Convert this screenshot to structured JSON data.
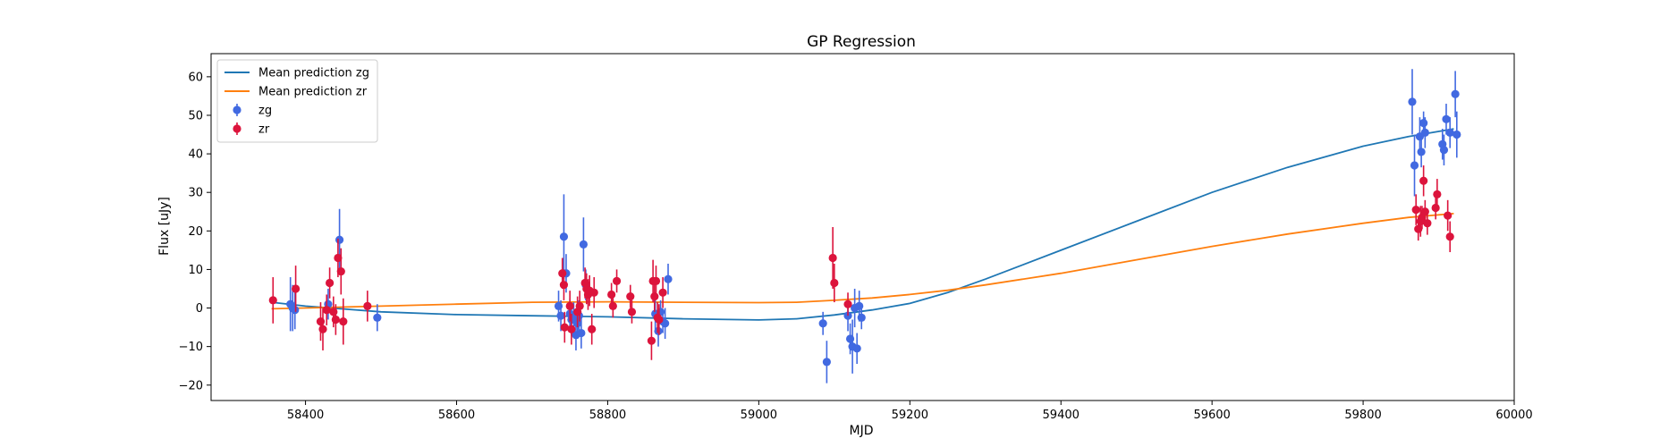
{
  "chart_data": {
    "type": "scatter",
    "title": "GP Regression",
    "xlabel": "MJD",
    "ylabel": "Flux [uJy]",
    "xlim": [
      58275,
      60000
    ],
    "ylim": [
      -24,
      66
    ],
    "xticks": [
      58400,
      58600,
      58800,
      59000,
      59200,
      59400,
      59600,
      59800,
      60000
    ],
    "yticks": [
      -20,
      -10,
      0,
      10,
      20,
      30,
      40,
      50,
      60
    ],
    "grid": false,
    "legend_position": "top-left",
    "colors": {
      "mean_zg": "#1f77b4",
      "mean_zr": "#ff7f0e",
      "zg": "#4169e1",
      "zr": "#dc143c"
    },
    "legend": [
      {
        "label": "Mean prediction zg",
        "kind": "line",
        "color": "#1f77b4"
      },
      {
        "label": "Mean prediction zr",
        "kind": "line",
        "color": "#ff7f0e"
      },
      {
        "label": "zg",
        "kind": "errorbar",
        "color": "#4169e1"
      },
      {
        "label": "zr",
        "kind": "errorbar",
        "color": "#dc143c"
      }
    ],
    "series": [
      {
        "name": "Mean prediction zg",
        "kind": "line",
        "color": "#1f77b4",
        "points": [
          [
            58355,
            1.5
          ],
          [
            58400,
            0.5
          ],
          [
            58500,
            -1
          ],
          [
            58600,
            -1.7
          ],
          [
            58700,
            -2
          ],
          [
            58800,
            -2.3
          ],
          [
            58900,
            -2.8
          ],
          [
            59000,
            -3.1
          ],
          [
            59050,
            -2.8
          ],
          [
            59100,
            -1.8
          ],
          [
            59150,
            -0.5
          ],
          [
            59200,
            1.2
          ],
          [
            59250,
            4
          ],
          [
            59300,
            7.5
          ],
          [
            59400,
            15
          ],
          [
            59500,
            22.5
          ],
          [
            59600,
            30
          ],
          [
            59700,
            36.5
          ],
          [
            59800,
            42
          ],
          [
            59860,
            44.5
          ],
          [
            59920,
            46.5
          ]
        ]
      },
      {
        "name": "Mean prediction zr",
        "kind": "line",
        "color": "#ff7f0e",
        "points": [
          [
            58355,
            -0.2
          ],
          [
            58400,
            0
          ],
          [
            58500,
            0.5
          ],
          [
            58600,
            1
          ],
          [
            58700,
            1.5
          ],
          [
            58800,
            1.6
          ],
          [
            58900,
            1.5
          ],
          [
            59000,
            1.4
          ],
          [
            59050,
            1.5
          ],
          [
            59100,
            2
          ],
          [
            59150,
            2.6
          ],
          [
            59200,
            3.5
          ],
          [
            59250,
            4.6
          ],
          [
            59300,
            6
          ],
          [
            59400,
            9
          ],
          [
            59500,
            12.5
          ],
          [
            59600,
            16
          ],
          [
            59700,
            19.2
          ],
          [
            59800,
            22
          ],
          [
            59860,
            23.5
          ],
          [
            59920,
            24.5
          ]
        ]
      },
      {
        "name": "zg",
        "kind": "errorbar",
        "color": "#4169e1",
        "points": [
          [
            58380,
            1,
            7
          ],
          [
            58383,
            0,
            6
          ],
          [
            58386,
            -0.5,
            5
          ],
          [
            58430,
            1,
            4
          ],
          [
            58445,
            17.7,
            8
          ],
          [
            58495,
            -2.5,
            3.5
          ],
          [
            58735,
            0.5,
            4
          ],
          [
            58738,
            -2,
            4
          ],
          [
            58742,
            18.5,
            11
          ],
          [
            58745,
            9,
            5
          ],
          [
            58750,
            -1.5,
            4
          ],
          [
            58752,
            -3,
            4
          ],
          [
            58755,
            -2.5,
            4
          ],
          [
            58758,
            -7,
            4
          ],
          [
            58760,
            -4,
            4
          ],
          [
            58762,
            -2,
            4
          ],
          [
            58765,
            -6.5,
            4
          ],
          [
            58768,
            16.5,
            7
          ],
          [
            58771,
            6,
            4
          ],
          [
            58863,
            -1.5,
            4
          ],
          [
            58867,
            -6,
            4
          ],
          [
            58870,
            -1,
            3
          ],
          [
            58873,
            -3.5,
            3
          ],
          [
            58876,
            -4,
            4
          ],
          [
            58880,
            7.5,
            4
          ],
          [
            59085,
            -4,
            3
          ],
          [
            59090,
            -14,
            5.5
          ],
          [
            59118,
            -2,
            4
          ],
          [
            59121,
            -8,
            4
          ],
          [
            59124,
            -10,
            7
          ],
          [
            59127,
            0,
            5
          ],
          [
            59130,
            -10.5,
            4
          ],
          [
            59133,
            0.5,
            4
          ],
          [
            59136,
            -2.5,
            3
          ],
          [
            59865,
            53.5,
            8.5
          ],
          [
            59868,
            37,
            8
          ],
          [
            59875,
            44.5,
            5
          ],
          [
            59877,
            40.5,
            4
          ],
          [
            59880,
            48,
            3
          ],
          [
            59882,
            45.5,
            4
          ],
          [
            59905,
            42.5,
            4
          ],
          [
            59907,
            41,
            4
          ],
          [
            59910,
            49,
            4
          ],
          [
            59915,
            45.5,
            4
          ],
          [
            59922,
            55.5,
            6
          ],
          [
            59924,
            45,
            6
          ]
        ]
      },
      {
        "name": "zr",
        "kind": "errorbar",
        "color": "#dc143c",
        "points": [
          [
            58357,
            2,
            6
          ],
          [
            58387,
            5,
            6
          ],
          [
            58420,
            -3.5,
            5
          ],
          [
            58423,
            -5.5,
            5.5
          ],
          [
            58428,
            -0.5,
            4
          ],
          [
            58432,
            6.5,
            4
          ],
          [
            58437,
            -1,
            4
          ],
          [
            58440,
            -3,
            4
          ],
          [
            58443,
            13,
            5
          ],
          [
            58447,
            9.5,
            6
          ],
          [
            58450,
            -3.5,
            6
          ],
          [
            58482,
            0.5,
            4
          ],
          [
            58740,
            9,
            4
          ],
          [
            58742,
            6,
            4
          ],
          [
            58743,
            -5,
            4
          ],
          [
            58750,
            0.5,
            4
          ],
          [
            58752,
            -5.5,
            4
          ],
          [
            58760,
            -1,
            4
          ],
          [
            58763,
            0.5,
            4
          ],
          [
            58770,
            6.5,
            4
          ],
          [
            58772,
            5,
            4
          ],
          [
            58774,
            3.5,
            4
          ],
          [
            58776,
            4.5,
            4
          ],
          [
            58779,
            -5.5,
            4
          ],
          [
            58782,
            4,
            4
          ],
          [
            58805,
            3.5,
            3
          ],
          [
            58807,
            0.5,
            3
          ],
          [
            58812,
            7,
            3
          ],
          [
            58830,
            3,
            3
          ],
          [
            58832,
            -1,
            3
          ],
          [
            58858,
            -8.5,
            5
          ],
          [
            58860,
            7,
            5.5
          ],
          [
            58862,
            3,
            4
          ],
          [
            58864,
            7,
            4
          ],
          [
            58866,
            -2.5,
            4
          ],
          [
            58868,
            -3,
            4
          ],
          [
            58873,
            4,
            4
          ],
          [
            59098,
            13,
            8
          ],
          [
            59100,
            6.5,
            5
          ],
          [
            59118,
            1,
            3
          ],
          [
            59870,
            25.5,
            4
          ],
          [
            59873,
            20.5,
            3
          ],
          [
            59876,
            22.5,
            4
          ],
          [
            59878,
            23.5,
            3
          ],
          [
            59880,
            33,
            4
          ],
          [
            59882,
            25,
            3
          ],
          [
            59885,
            22,
            3
          ],
          [
            59896,
            26,
            3
          ],
          [
            59898,
            29.5,
            4
          ],
          [
            59912,
            24,
            4
          ],
          [
            59915,
            18.5,
            4
          ]
        ]
      }
    ]
  }
}
